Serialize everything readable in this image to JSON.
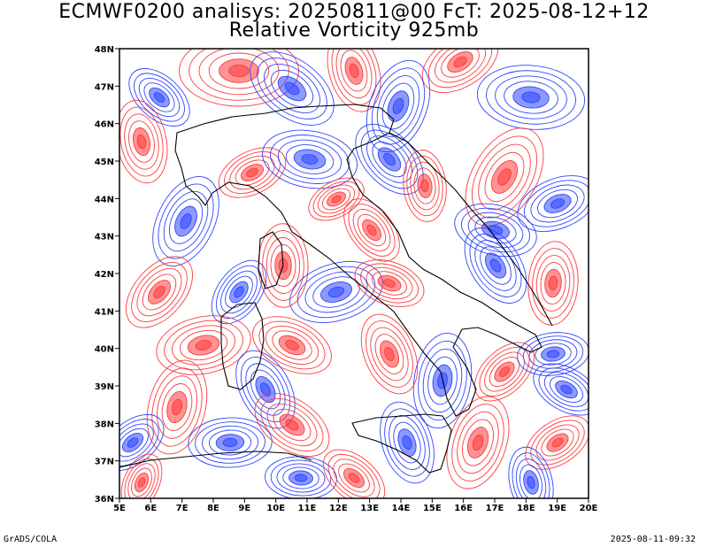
{
  "title": {
    "line1": "ECMWF0200 analisys: 20250811@00 FcT: 2025-08-12+12",
    "line2": "Relative Vorticity 925mb"
  },
  "map": {
    "lon_range": [
      5,
      20
    ],
    "lat_range": [
      36,
      48
    ],
    "lon_labels": [
      "5E",
      "6E",
      "7E",
      "8E",
      "9E",
      "10E",
      "11E",
      "12E",
      "13E",
      "14E",
      "15E",
      "16E",
      "17E",
      "18E",
      "19E",
      "20E"
    ],
    "lat_labels": [
      "36N",
      "37N",
      "38N",
      "39N",
      "40N",
      "41N",
      "42N",
      "43N",
      "44N",
      "45N",
      "46N",
      "47N",
      "48N"
    ],
    "colors": {
      "positive": "#ff3b3b",
      "negative": "#2e45ff",
      "coastline": "#000000"
    }
  },
  "footer": {
    "left": "GrADS/COLA",
    "right": "2025-08-11-09:32"
  }
}
